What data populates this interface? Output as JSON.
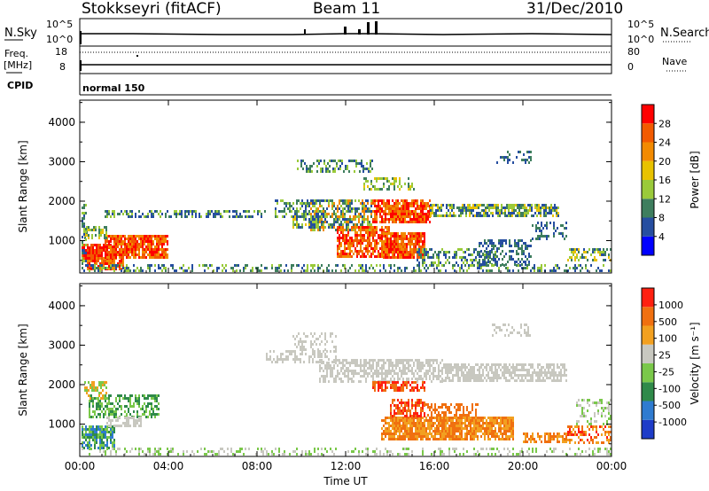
{
  "header": {
    "station": "Stokkseyri (fitACF)",
    "beam": "Beam 11",
    "date": "31/Dec/2010"
  },
  "aux": {
    "nsky_label": "N.Sky",
    "nsearch_label": "N.Search",
    "nsky_ticks": [
      "10^5",
      "10^0"
    ],
    "nsearch_ticks": [
      "10^5",
      "10^0"
    ],
    "freq_label": "Freq.",
    "freq_unit": "[MHz]",
    "freq_ticks": [
      "18",
      "8"
    ],
    "nave_label": "Nave",
    "nave_ticks": [
      "80",
      "0"
    ],
    "cpid_label": "CPID",
    "cpid_value": "normal 150"
  },
  "chart_data": [
    {
      "type": "heatmap",
      "name": "power",
      "ylabel": "Slant Range [km]",
      "yticks": [
        "4000",
        "3000",
        "2000",
        "1000"
      ],
      "ylim": [
        180,
        4560
      ],
      "x_ticks": [
        "00:00",
        "04:00",
        "08:00",
        "12:00",
        "16:00",
        "20:00",
        "00:00"
      ],
      "colorbar_label": "Power [dB]",
      "colorbar_ticks": [
        "28",
        "24",
        "20",
        "16",
        "12",
        "8",
        "4"
      ],
      "colorbar_colors": [
        "#0000ff",
        "#264ea0",
        "#3e7e5e",
        "#9aca3a",
        "#e8c200",
        "#f28a00",
        "#f25a00",
        "#ff0000"
      ]
    },
    {
      "type": "heatmap",
      "name": "velocity",
      "ylabel": "Slant Range [km]",
      "yticks": [
        "4000",
        "3000",
        "2000",
        "1000"
      ],
      "ylim": [
        180,
        4560
      ],
      "xlabel": "Time UT",
      "x_ticks": [
        "00:00",
        "04:00",
        "08:00",
        "12:00",
        "16:00",
        "20:00",
        "00:00"
      ],
      "colorbar_label": "Velocity [m s⁻¹]",
      "colorbar_ticks": [
        "1000",
        "500",
        "100",
        "25",
        "-25",
        "-100",
        "-500",
        "-1000"
      ],
      "colorbar_colors": [
        "#1e3cc8",
        "#2f7bd0",
        "#2f8a4a",
        "#7ac84a",
        "#c8c8c0",
        "#f2a020",
        "#f07010",
        "#ff2010"
      ]
    }
  ]
}
